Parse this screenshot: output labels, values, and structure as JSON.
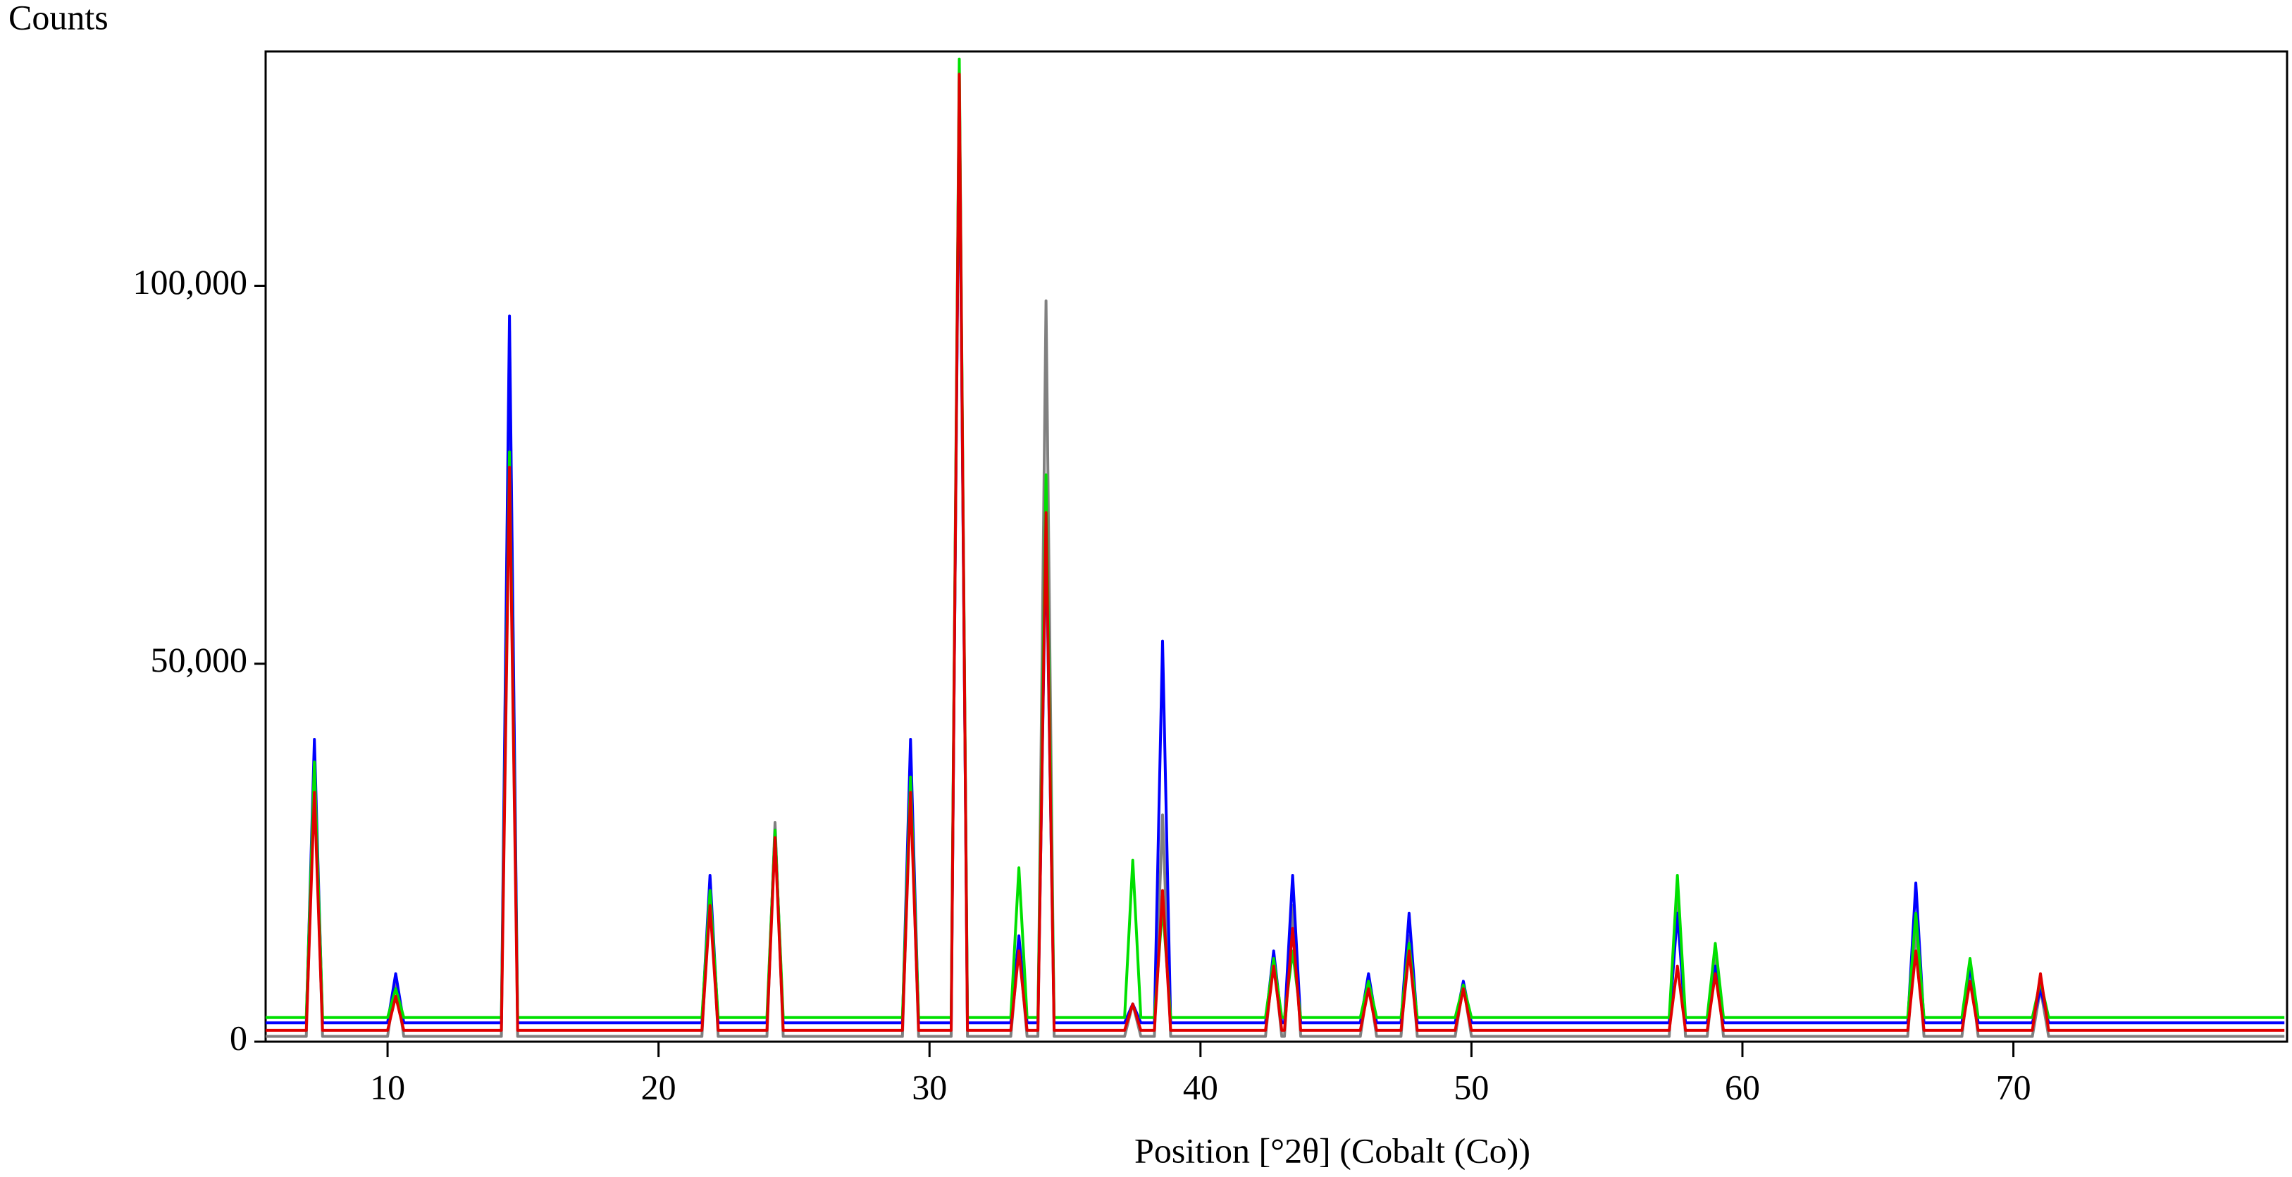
{
  "chart_data": {
    "type": "line",
    "ylabel": "Counts",
    "xlabel": "Position [°2θ] (Cobalt (Co))",
    "xlim": [
      5.5,
      80.1
    ],
    "xticks": [
      10,
      20,
      30,
      40,
      50,
      60,
      70
    ],
    "ylim": [
      0,
      131000
    ],
    "yticks": [
      0,
      {
        "value": 50000,
        "label": "50,000"
      },
      {
        "value": 100000,
        "label": "100,000"
      }
    ],
    "x": [
      5.5,
      7.0,
      7.3,
      7.6,
      10.0,
      10.3,
      10.6,
      14.2,
      14.5,
      14.8,
      21.6,
      21.9,
      22.2,
      24.0,
      24.3,
      24.6,
      29.0,
      29.3,
      29.6,
      30.8,
      31.1,
      31.4,
      33.0,
      33.3,
      33.6,
      34.0,
      34.3,
      34.6,
      37.2,
      37.5,
      37.8,
      38.3,
      38.6,
      38.9,
      42.4,
      42.7,
      43.0,
      43.1,
      43.4,
      43.7,
      45.9,
      46.2,
      46.5,
      47.4,
      47.7,
      48.0,
      49.4,
      49.7,
      50.0,
      57.3,
      57.6,
      57.9,
      58.7,
      59.0,
      59.3,
      66.1,
      66.4,
      66.7,
      68.1,
      68.4,
      68.7,
      70.7,
      71.0,
      71.3,
      80.0
    ],
    "series": [
      {
        "color": "#808080",
        "values": [
          700,
          700,
          36000,
          700,
          700,
          8000,
          700,
          700,
          94000,
          700,
          700,
          21000,
          700,
          700,
          29000,
          700,
          700,
          35000,
          700,
          700,
          129000,
          700,
          700,
          13000,
          700,
          700,
          98000,
          700,
          700,
          5000,
          700,
          700,
          30000,
          700,
          700,
          11000,
          700,
          700,
          18000,
          700,
          700,
          8000,
          700,
          700,
          14000,
          700,
          700,
          7500,
          700,
          700,
          20000,
          700,
          700,
          11000,
          700,
          700,
          15000,
          700,
          700,
          10000,
          700,
          700,
          7000,
          700,
          700
        ]
      },
      {
        "color": "#0000ff",
        "values": [
          2500,
          2500,
          40000,
          2500,
          2500,
          9000,
          2500,
          2500,
          96000,
          2500,
          2500,
          22000,
          2500,
          2500,
          28000,
          2500,
          2500,
          40000,
          2500,
          2500,
          125000,
          2500,
          2500,
          14000,
          2500,
          2500,
          68000,
          2500,
          2500,
          5000,
          2500,
          2500,
          53000,
          2500,
          2500,
          12000,
          2500,
          2500,
          22000,
          2500,
          2500,
          9000,
          2500,
          2500,
          17000,
          2500,
          2500,
          8000,
          2500,
          2500,
          17000,
          2500,
          2500,
          10000,
          2500,
          2500,
          21000,
          2500,
          2500,
          10000,
          2500,
          2500,
          7000,
          2500,
          2500
        ]
      },
      {
        "color": "#00e000",
        "values": [
          3200,
          3200,
          37000,
          3200,
          3200,
          7000,
          3200,
          3200,
          78000,
          3200,
          3200,
          20000,
          3200,
          3200,
          28000,
          3200,
          3200,
          35000,
          3200,
          3200,
          130000,
          3200,
          3200,
          23000,
          3200,
          3200,
          75000,
          3200,
          3200,
          24000,
          3200,
          3200,
          18000,
          3200,
          3200,
          11000,
          3200,
          3200,
          12000,
          3200,
          3200,
          8000,
          3200,
          3200,
          13000,
          3200,
          3200,
          7500,
          3200,
          3200,
          22000,
          3200,
          3200,
          13000,
          3200,
          3200,
          17000,
          3200,
          3200,
          11000,
          3200,
          3200,
          8000,
          3200,
          3200
        ]
      },
      {
        "color": "#e00000",
        "values": [
          1500,
          1500,
          33000,
          1500,
          1500,
          6000,
          1500,
          1500,
          76000,
          1500,
          1500,
          18000,
          1500,
          1500,
          27000,
          1500,
          1500,
          33000,
          1500,
          1500,
          128000,
          1500,
          1500,
          12000,
          1500,
          1500,
          70000,
          1500,
          1500,
          5000,
          1500,
          1500,
          20000,
          1500,
          1500,
          10000,
          1500,
          1500,
          15000,
          1500,
          1500,
          7000,
          1500,
          1500,
          12000,
          1500,
          1500,
          7000,
          1500,
          1500,
          10000,
          1500,
          1500,
          9000,
          1500,
          1500,
          12000,
          1500,
          1500,
          8000,
          1500,
          1500,
          9000,
          1500,
          1500
        ]
      }
    ]
  }
}
